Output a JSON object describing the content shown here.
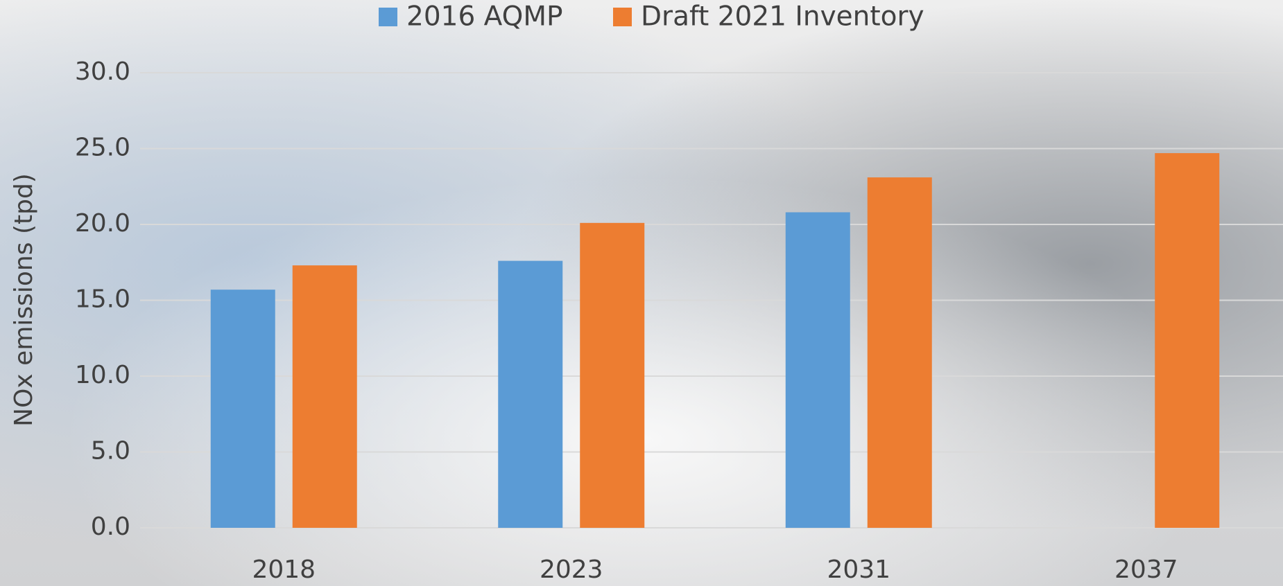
{
  "chart_data": {
    "type": "bar",
    "y_label": "NOx emissions (tpd)",
    "categories": [
      "2018",
      "2023",
      "2031",
      "2037"
    ],
    "series": [
      {
        "name": "2016 AQMP",
        "color": "#5b9bd5",
        "values": [
          15.7,
          17.6,
          20.8,
          null
        ]
      },
      {
        "name": "Draft 2021 Inventory",
        "color": "#ed7d31",
        "values": [
          17.3,
          20.1,
          23.1,
          24.7
        ]
      }
    ],
    "ylim": [
      0,
      30
    ],
    "yticks": [
      {
        "value": 0,
        "label": "0.0"
      },
      {
        "value": 5,
        "label": "5.0"
      },
      {
        "value": 10,
        "label": "10.0"
      },
      {
        "value": 15,
        "label": "15.0"
      },
      {
        "value": 20,
        "label": "20.0"
      },
      {
        "value": 25,
        "label": "25.0"
      },
      {
        "value": 30,
        "label": "30.0"
      }
    ],
    "grid": true,
    "legend": "top"
  }
}
